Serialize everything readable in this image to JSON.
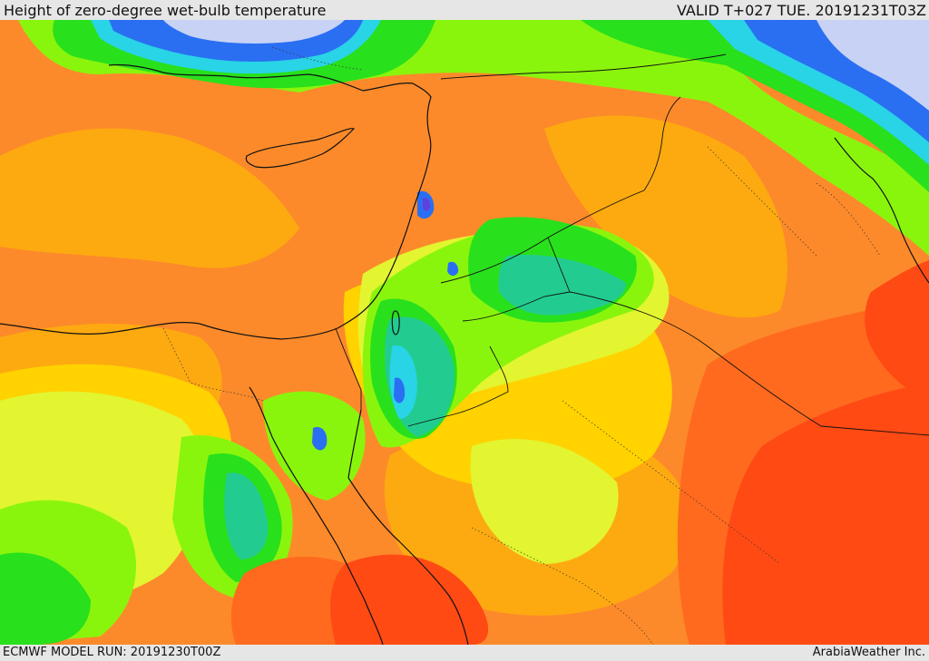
{
  "header": {
    "title": "Height of zero-degree wet-bulb temperature",
    "valid": "VALID T+027 TUE. 20191231T03Z"
  },
  "footer": {
    "model_run": "ECMWF MODEL RUN: 20191230T00Z",
    "credit": "ArabiaWeather Inc."
  },
  "colors": {
    "dark_red": "#ff4a14",
    "orange_red": "#ff6a1e",
    "orange": "#fd8a2a",
    "light_orange": "#fdaa10",
    "yellow": "#ffd200",
    "yellow_green": "#e2f530",
    "lime": "#8af50c",
    "green": "#29e01c",
    "teal": "#22cc90",
    "cyan": "#28d4e6",
    "blue": "#2a6ff2",
    "purple": "#6040dc",
    "lavender": "#c8d2f5",
    "coastline": "#111111"
  }
}
